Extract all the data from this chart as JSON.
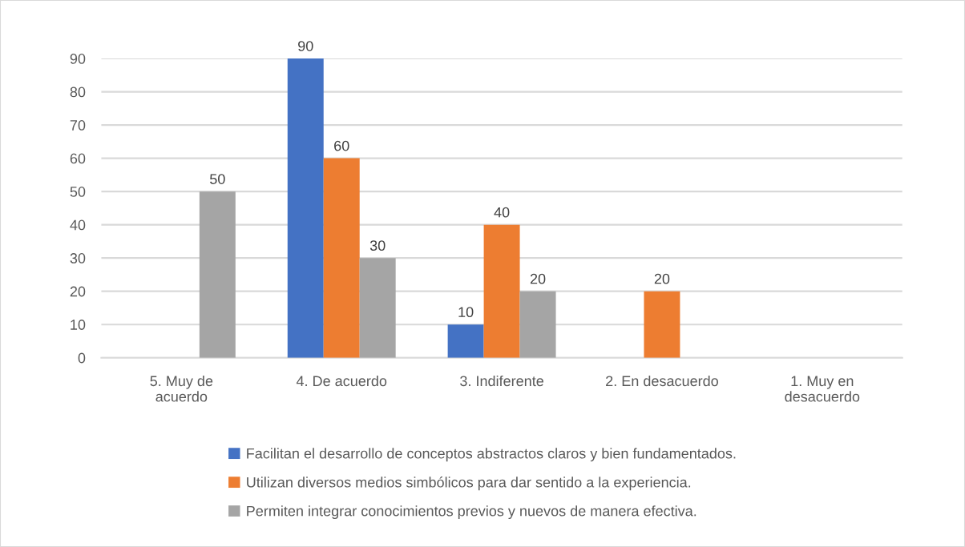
{
  "chart_data": {
    "type": "bar",
    "categories": [
      "5. Muy de\nacuerdo",
      "4. De acuerdo",
      "3. Indiferente",
      "2. En desacuerdo",
      "1. Muy en\ndesacuerdo"
    ],
    "series": [
      {
        "name": "Facilitan el desarrollo de conceptos abstractos claros y bien fundamentados.",
        "color": "#4472c4",
        "values": [
          null,
          90,
          10,
          null,
          null
        ]
      },
      {
        "name": "Utilizan diversos medios simbólicos para dar sentido a la experiencia.",
        "color": "#ed7d31",
        "values": [
          null,
          60,
          40,
          20,
          null
        ]
      },
      {
        "name": "Permiten integrar conocimientos previos y nuevos de manera efectiva.",
        "color": "#a5a5a5",
        "values": [
          50,
          30,
          20,
          null,
          null
        ]
      }
    ],
    "ylim": [
      0,
      90
    ],
    "yticks": [
      0,
      10,
      20,
      30,
      40,
      50,
      60,
      70,
      80,
      90
    ],
    "grid": "y",
    "legend": "bottom",
    "data_labels": true
  }
}
